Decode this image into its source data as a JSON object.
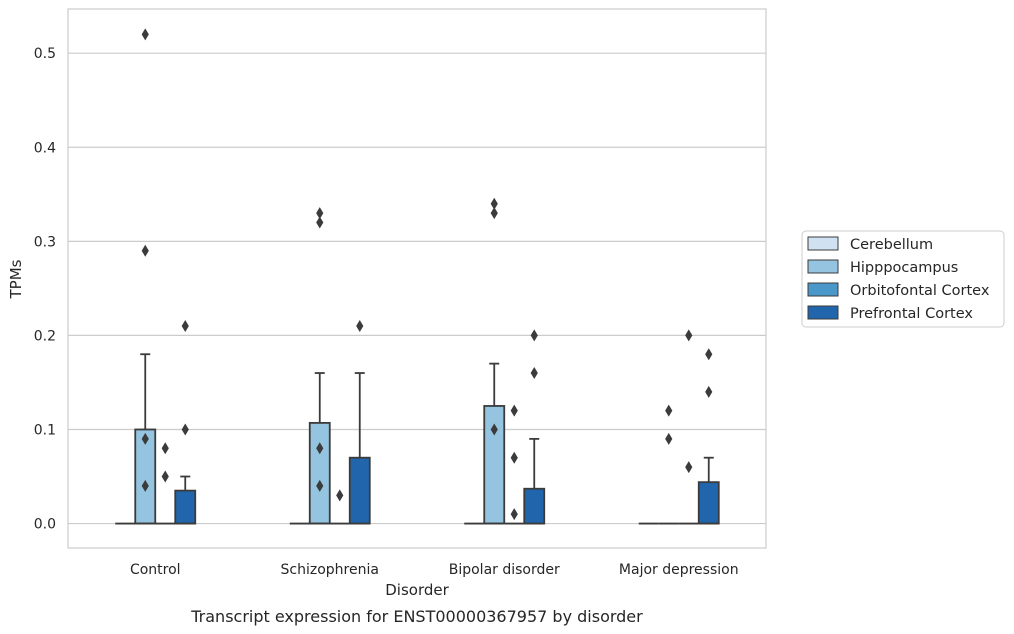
{
  "chart_data": {
    "type": "box",
    "caption": "Transcript expression for ENST00000367957 by disorder",
    "xlabel": "Disorder",
    "ylabel": "TPMs",
    "ylim": [
      -0.026,
      0.547
    ],
    "yticks": [
      "0.0",
      "0.1",
      "0.2",
      "0.3",
      "0.4",
      "0.5"
    ],
    "grid": true,
    "legend_placement": "outside-right",
    "categories": [
      "Control",
      "Schizophrenia",
      "Bipolar disorder",
      "Major depression"
    ],
    "series": [
      {
        "name": "Cerebellum",
        "color": "#d0e1f2",
        "boxes": [
          {
            "q1": 0,
            "median": 0,
            "q3": 0,
            "whisker_low": 0,
            "whisker_high": 0,
            "outliers": []
          },
          {
            "q1": 0,
            "median": 0,
            "q3": 0,
            "whisker_low": 0,
            "whisker_high": 0,
            "outliers": []
          },
          {
            "q1": 0,
            "median": 0,
            "q3": 0,
            "whisker_low": 0,
            "whisker_high": 0,
            "outliers": []
          },
          {
            "q1": 0,
            "median": 0,
            "q3": 0,
            "whisker_low": 0,
            "whisker_high": 0,
            "outliers": []
          }
        ]
      },
      {
        "name": "Hipppocampus",
        "color": "#94c4df",
        "boxes": [
          {
            "q1": 0,
            "median": 0,
            "q3": 0.1,
            "whisker_low": 0,
            "whisker_high": 0.18,
            "outliers": [
              0.04,
              0.09,
              0.29,
              0.52
            ]
          },
          {
            "q1": 0,
            "median": 0,
            "q3": 0.107,
            "whisker_low": 0,
            "whisker_high": 0.16,
            "outliers": [
              0.04,
              0.08,
              0.32,
              0.33
            ]
          },
          {
            "q1": 0,
            "median": 0,
            "q3": 0.125,
            "whisker_low": 0,
            "whisker_high": 0.17,
            "outliers": [
              0.1,
              0.33,
              0.34
            ]
          },
          {
            "q1": 0,
            "median": 0,
            "q3": 0,
            "whisker_low": 0,
            "whisker_high": 0,
            "outliers": [
              0.09,
              0.12
            ]
          }
        ]
      },
      {
        "name": "Orbitofontal Cortex",
        "color": "#4a98c9",
        "boxes": [
          {
            "q1": 0,
            "median": 0,
            "q3": 0,
            "whisker_low": 0,
            "whisker_high": 0,
            "outliers": [
              0.05,
              0.08
            ]
          },
          {
            "q1": 0,
            "median": 0,
            "q3": 0,
            "whisker_low": 0,
            "whisker_high": 0,
            "outliers": [
              0.03
            ]
          },
          {
            "q1": 0,
            "median": 0,
            "q3": 0,
            "whisker_low": 0,
            "whisker_high": 0,
            "outliers": [
              0.01,
              0.07,
              0.12
            ]
          },
          {
            "q1": 0,
            "median": 0,
            "q3": 0,
            "whisker_low": 0,
            "whisker_high": 0,
            "outliers": [
              0.06,
              0.2
            ]
          }
        ]
      },
      {
        "name": "Prefrontal Cortex",
        "color": "#2166ac",
        "boxes": [
          {
            "q1": 0,
            "median": 0,
            "q3": 0.035,
            "whisker_low": 0,
            "whisker_high": 0.05,
            "outliers": [
              0.1,
              0.21
            ]
          },
          {
            "q1": 0,
            "median": 0,
            "q3": 0.07,
            "whisker_low": 0,
            "whisker_high": 0.16,
            "outliers": [
              0.21
            ]
          },
          {
            "q1": 0,
            "median": 0,
            "q3": 0.037,
            "whisker_low": 0,
            "whisker_high": 0.09,
            "outliers": [
              0.16,
              0.2
            ]
          },
          {
            "q1": 0,
            "median": 0,
            "q3": 0.044,
            "whisker_low": 0,
            "whisker_high": 0.07,
            "outliers": [
              0.14,
              0.18
            ]
          }
        ]
      }
    ]
  }
}
